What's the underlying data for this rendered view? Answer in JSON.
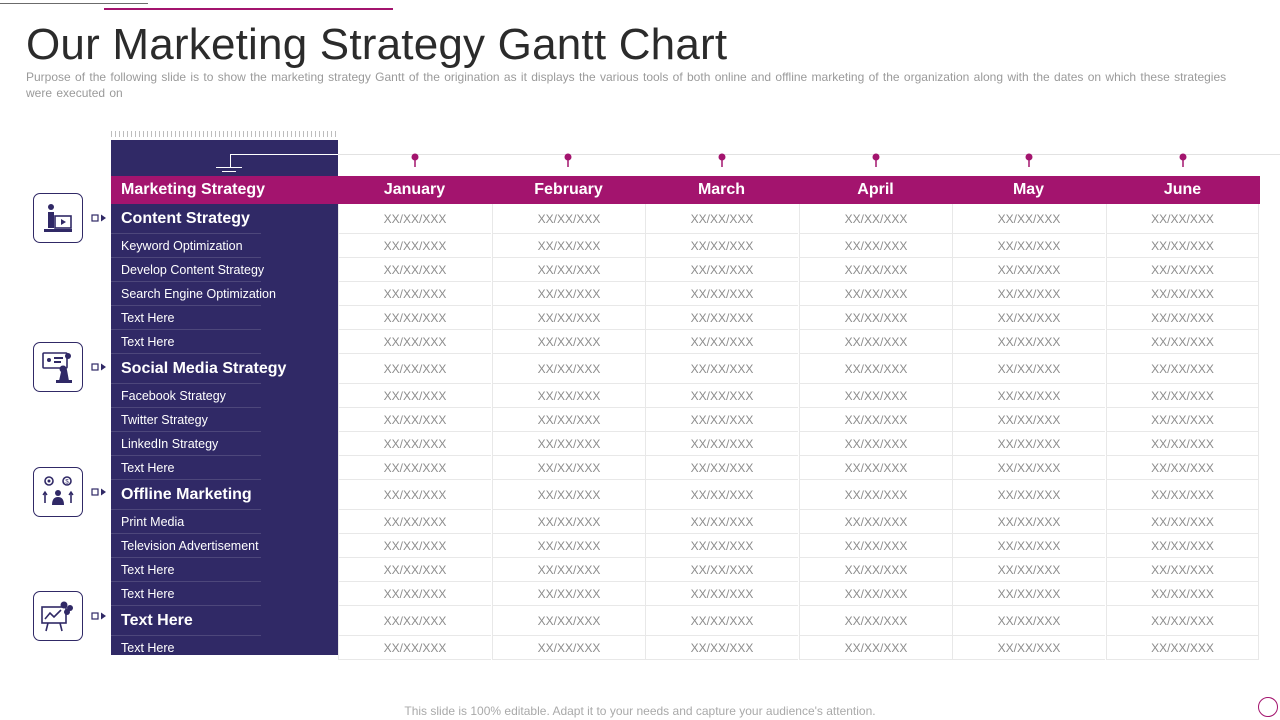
{
  "slide": {
    "title": "Our Marketing Strategy Gantt Chart",
    "subtitle": "Purpose of the following slide is to show the marketing strategy Gantt  of the origination  as it displays the various  tools of both online and offline  marketing of the organization  along with the dates on which these strategies were  executed on",
    "footer": "This slide is 100% editable. Adapt it to your needs and capture your audience's attention."
  },
  "colors": {
    "accent": "#a3146e",
    "panel": "#302966",
    "cell_text": "#8c8c8c"
  },
  "table": {
    "header_label": "Marketing Strategy",
    "months": [
      "January",
      "February",
      "March",
      "April",
      "May",
      "June"
    ],
    "rows": [
      {
        "label": "Content Strategy",
        "type": "category",
        "cells": [
          "XX/XX/XXX",
          "XX/XX/XXX",
          "XX/XX/XXX",
          "XX/XX/XXX",
          "XX/XX/XXX",
          "XX/XX/XXX"
        ]
      },
      {
        "label": "Keyword Optimization",
        "type": "item",
        "cells": [
          "XX/XX/XXX",
          "XX/XX/XXX",
          "XX/XX/XXX",
          "XX/XX/XXX",
          "XX/XX/XXX",
          "XX/XX/XXX"
        ]
      },
      {
        "label": "Develop Content Strategy",
        "type": "item",
        "cells": [
          "XX/XX/XXX",
          "XX/XX/XXX",
          "XX/XX/XXX",
          "XX/XX/XXX",
          "XX/XX/XXX",
          "XX/XX/XXX"
        ]
      },
      {
        "label": "Search Engine Optimization",
        "type": "item",
        "cells": [
          "XX/XX/XXX",
          "XX/XX/XXX",
          "XX/XX/XXX",
          "XX/XX/XXX",
          "XX/XX/XXX",
          "XX/XX/XXX"
        ]
      },
      {
        "label": "Text Here",
        "type": "item",
        "cells": [
          "XX/XX/XXX",
          "XX/XX/XXX",
          "XX/XX/XXX",
          "XX/XX/XXX",
          "XX/XX/XXX",
          "XX/XX/XXX"
        ]
      },
      {
        "label": "Text Here",
        "type": "item",
        "cells": [
          "XX/XX/XXX",
          "XX/XX/XXX",
          "XX/XX/XXX",
          "XX/XX/XXX",
          "XX/XX/XXX",
          "XX/XX/XXX"
        ]
      },
      {
        "label": "Social Media Strategy",
        "type": "category",
        "cells": [
          "XX/XX/XXX",
          "XX/XX/XXX",
          "XX/XX/XXX",
          "XX/XX/XXX",
          "XX/XX/XXX",
          "XX/XX/XXX"
        ]
      },
      {
        "label": "Facebook Strategy",
        "type": "item",
        "cells": [
          "XX/XX/XXX",
          "XX/XX/XXX",
          "XX/XX/XXX",
          "XX/XX/XXX",
          "XX/XX/XXX",
          "XX/XX/XXX"
        ]
      },
      {
        "label": "Twitter Strategy",
        "type": "item",
        "cells": [
          "XX/XX/XXX",
          "XX/XX/XXX",
          "XX/XX/XXX",
          "XX/XX/XXX",
          "XX/XX/XXX",
          "XX/XX/XXX"
        ]
      },
      {
        "label": "LinkedIn Strategy",
        "type": "item",
        "cells": [
          "XX/XX/XXX",
          "XX/XX/XXX",
          "XX/XX/XXX",
          "XX/XX/XXX",
          "XX/XX/XXX",
          "XX/XX/XXX"
        ]
      },
      {
        "label": "Text Here",
        "type": "item",
        "cells": [
          "XX/XX/XXX",
          "XX/XX/XXX",
          "XX/XX/XXX",
          "XX/XX/XXX",
          "XX/XX/XXX",
          "XX/XX/XXX"
        ]
      },
      {
        "label": "Offline Marketing",
        "type": "category",
        "cells": [
          "XX/XX/XXX",
          "XX/XX/XXX",
          "XX/XX/XXX",
          "XX/XX/XXX",
          "XX/XX/XXX",
          "XX/XX/XXX"
        ]
      },
      {
        "label": "Print Media",
        "type": "item",
        "cells": [
          "XX/XX/XXX",
          "XX/XX/XXX",
          "XX/XX/XXX",
          "XX/XX/XXX",
          "XX/XX/XXX",
          "XX/XX/XXX"
        ]
      },
      {
        "label": "Television Advertisement",
        "type": "item",
        "cells": [
          "XX/XX/XXX",
          "XX/XX/XXX",
          "XX/XX/XXX",
          "XX/XX/XXX",
          "XX/XX/XXX",
          "XX/XX/XXX"
        ]
      },
      {
        "label": "Text Here",
        "type": "item",
        "cells": [
          "XX/XX/XXX",
          "XX/XX/XXX",
          "XX/XX/XXX",
          "XX/XX/XXX",
          "XX/XX/XXX",
          "XX/XX/XXX"
        ]
      },
      {
        "label": "Text Here",
        "type": "item",
        "cells": [
          "XX/XX/XXX",
          "XX/XX/XXX",
          "XX/XX/XXX",
          "XX/XX/XXX",
          "XX/XX/XXX",
          "XX/XX/XXX"
        ]
      },
      {
        "label": "Text Here",
        "type": "category",
        "cells": [
          "XX/XX/XXX",
          "XX/XX/XXX",
          "XX/XX/XXX",
          "XX/XX/XXX",
          "XX/XX/XXX",
          "XX/XX/XXX"
        ]
      },
      {
        "label": "Text Here",
        "type": "item",
        "cells": [
          "XX/XX/XXX",
          "XX/XX/XXX",
          "XX/XX/XXX",
          "XX/XX/XXX",
          "XX/XX/XXX",
          "XX/XX/XXX"
        ]
      }
    ]
  },
  "icons": [
    {
      "name": "content-strategy-icon"
    },
    {
      "name": "social-media-strategy-icon"
    },
    {
      "name": "offline-marketing-icon"
    },
    {
      "name": "text-here-icon"
    }
  ]
}
